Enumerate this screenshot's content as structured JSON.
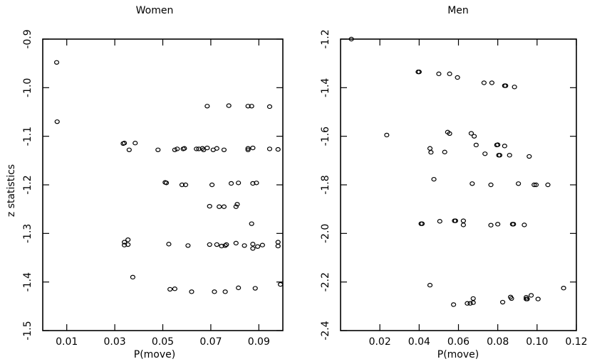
{
  "chart_data": [
    {
      "type": "scatter",
      "title": "Women",
      "xlabel": "P(move)",
      "ylabel": "z statistics",
      "xlim": [
        0.0,
        0.1
      ],
      "ylim": [
        -1.5,
        -0.9
      ],
      "xticks": [
        0.01,
        0.03,
        0.05,
        0.07,
        0.09
      ],
      "xtick_labels": [
        "0.01",
        "0.03",
        "0.05",
        "0.07",
        "0.09"
      ],
      "yticks": [
        -1.5,
        -1.4,
        -1.3,
        -1.2,
        -1.1,
        -1.0,
        -0.9
      ],
      "ytick_labels": [
        "-1.5",
        "-1.4",
        "-1.3",
        "-1.2",
        "-1.1",
        "-1.0",
        "-0.9"
      ],
      "grid": false,
      "x": [
        0.0058,
        0.006,
        0.0685,
        0.0775,
        0.0855,
        0.087,
        0.0945,
        0.0335,
        0.034,
        0.0385,
        0.036,
        0.048,
        0.055,
        0.056,
        0.0585,
        0.059,
        0.064,
        0.065,
        0.0665,
        0.0685,
        0.067,
        0.071,
        0.0725,
        0.0755,
        0.0855,
        0.0855,
        0.0875,
        0.0945,
        0.098,
        0.051,
        0.0515,
        0.058,
        0.0595,
        0.0705,
        0.0785,
        0.0815,
        0.0875,
        0.089,
        0.0695,
        0.0735,
        0.0755,
        0.081,
        0.0805,
        0.087,
        0.034,
        0.0355,
        0.034,
        0.0355,
        0.0525,
        0.0605,
        0.0695,
        0.0725,
        0.0745,
        0.076,
        0.0765,
        0.0805,
        0.084,
        0.0875,
        0.0875,
        0.0895,
        0.0915,
        0.098,
        0.098,
        0.0375,
        0.053,
        0.055,
        0.062,
        0.0715,
        0.076,
        0.0815,
        0.0885,
        0.099
      ],
      "y": [
        -0.948,
        -1.07,
        -1.038,
        -1.037,
        -1.038,
        -1.038,
        -1.039,
        -1.115,
        -1.114,
        -1.114,
        -1.128,
        -1.128,
        -1.128,
        -1.126,
        -1.126,
        -1.125,
        -1.126,
        -1.126,
        -1.125,
        -1.124,
        -1.128,
        -1.128,
        -1.125,
        -1.128,
        -1.125,
        -1.128,
        -1.124,
        -1.126,
        -1.127,
        -1.195,
        -1.196,
        -1.2,
        -1.2,
        -1.2,
        -1.197,
        -1.196,
        -1.197,
        -1.196,
        -1.244,
        -1.245,
        -1.245,
        -1.24,
        -1.245,
        -1.28,
        -1.318,
        -1.313,
        -1.324,
        -1.323,
        -1.322,
        -1.325,
        -1.323,
        -1.323,
        -1.326,
        -1.325,
        -1.323,
        -1.32,
        -1.325,
        -1.322,
        -1.331,
        -1.327,
        -1.324,
        -1.318,
        -1.326,
        -1.39,
        -1.415,
        -1.414,
        -1.42,
        -1.42,
        -1.42,
        -1.412,
        -1.413,
        -1.405
      ]
    },
    {
      "type": "scatter",
      "title": "Men",
      "xlabel": "P(move)",
      "ylabel": "",
      "xlim": [
        0.0,
        0.12
      ],
      "ylim": [
        -2.4,
        -1.2
      ],
      "xticks": [
        0.02,
        0.04,
        0.06,
        0.08,
        0.1,
        0.12
      ],
      "xtick_labels": [
        "0.02",
        "0.04",
        "0.06",
        "0.08",
        "0.10",
        "0.12"
      ],
      "yticks": [
        -2.4,
        -2.2,
        -2.0,
        -1.8,
        -1.6,
        -1.4,
        -1.2
      ],
      "ytick_labels": [
        "-2.4",
        "-2.2",
        "-2.0",
        "-1.8",
        "-1.6",
        "-1.4",
        "-1.2"
      ],
      "grid": false,
      "x": [
        0.0055,
        0.0395,
        0.04,
        0.05,
        0.0555,
        0.0595,
        0.073,
        0.077,
        0.0835,
        0.084,
        0.0885,
        0.0235,
        0.0545,
        0.0555,
        0.0665,
        0.068,
        0.0455,
        0.046,
        0.053,
        0.069,
        0.0795,
        0.08,
        0.0835,
        0.0735,
        0.0805,
        0.081,
        0.086,
        0.096,
        0.0475,
        0.067,
        0.0765,
        0.0905,
        0.0985,
        0.0995,
        0.1055,
        0.041,
        0.0415,
        0.0505,
        0.058,
        0.0585,
        0.0625,
        0.0625,
        0.0765,
        0.08,
        0.0875,
        0.088,
        0.0935,
        0.0455,
        0.0675,
        0.0675,
        0.0645,
        0.066,
        0.0575,
        0.0825,
        0.0865,
        0.087,
        0.0945,
        0.0945,
        0.095,
        0.097,
        0.1005,
        0.1135
      ],
      "y": [
        -1.2,
        -1.335,
        -1.335,
        -1.343,
        -1.343,
        -1.358,
        -1.38,
        -1.38,
        -1.392,
        -1.392,
        -1.397,
        -1.595,
        -1.583,
        -1.589,
        -1.588,
        -1.6,
        -1.65,
        -1.666,
        -1.665,
        -1.636,
        -1.636,
        -1.635,
        -1.64,
        -1.672,
        -1.678,
        -1.678,
        -1.678,
        -1.683,
        -1.777,
        -1.795,
        -1.8,
        -1.795,
        -1.8,
        -1.8,
        -1.8,
        -1.96,
        -1.96,
        -1.95,
        -1.948,
        -1.948,
        -1.948,
        -1.965,
        -1.966,
        -1.962,
        -1.962,
        -1.962,
        -1.965,
        -2.213,
        -2.268,
        -2.285,
        -2.288,
        -2.288,
        -2.293,
        -2.283,
        -2.262,
        -2.268,
        -2.263,
        -2.27,
        -2.27,
        -2.255,
        -2.27,
        -2.225
      ]
    }
  ]
}
